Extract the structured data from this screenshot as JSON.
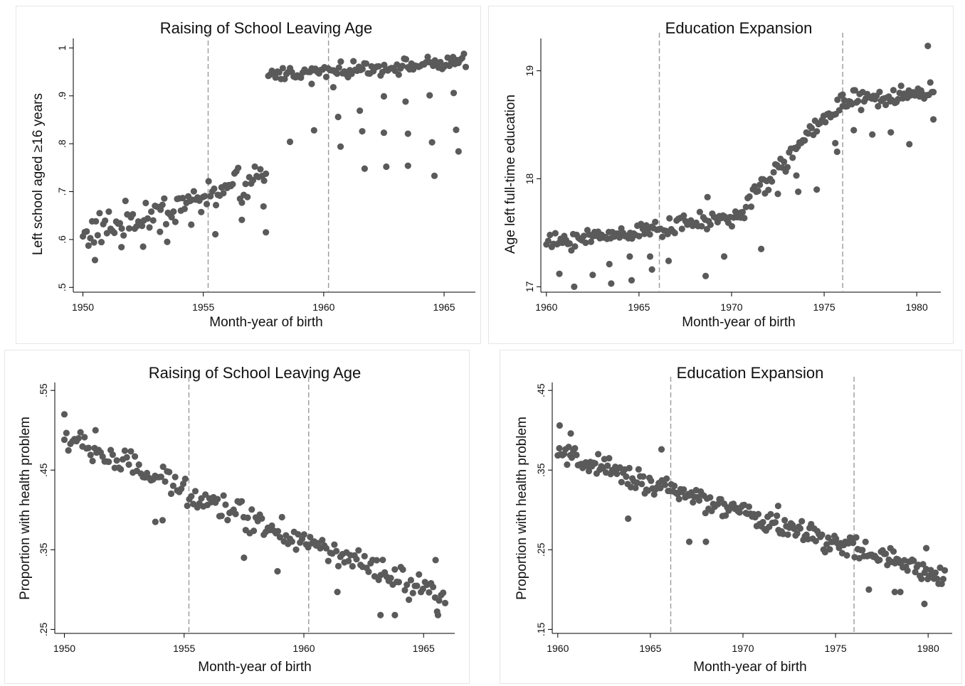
{
  "chart_data": [
    {
      "id": "tl",
      "type": "scatter",
      "title": "Raising of School Leaving Age",
      "xlabel": "Month-year of birth",
      "ylabel": "Left school aged ≥16 years",
      "xlim": [
        1949.6,
        1966.3
      ],
      "ylim": [
        0.49,
        1.02
      ],
      "xticks": [
        1950,
        1955,
        1960,
        1965
      ],
      "xtick_labels": [
        "1950",
        "1955",
        "1960",
        "1965"
      ],
      "yticks": [
        0.5,
        0.6,
        0.7,
        0.8,
        0.9,
        1.0
      ],
      "ytick_labels": [
        ".5",
        ".6",
        ".7",
        ".8",
        ".9",
        "1"
      ],
      "reference_lines": [
        1955.2,
        1960.2
      ],
      "grid": false,
      "trend": [
        {
          "x0": 1950.0,
          "x1": 1957.6,
          "y0": 0.61,
          "y1": 0.725,
          "spread": 0.045,
          "n": 100,
          "outliers": [
            [
              1950.5,
              0.557
            ],
            [
              1951.6,
              0.584
            ],
            [
              1952.5,
              0.585
            ],
            [
              1953.5,
              0.595
            ],
            [
              1955.5,
              0.611
            ],
            [
              1956.6,
              0.641
            ],
            [
              1957.6,
              0.615
            ],
            [
              1957.5,
              0.669
            ],
            [
              1954.5,
              0.631
            ],
            [
              1953.2,
              0.616
            ]
          ]
        },
        {
          "x0": 1957.7,
          "x1": 1965.9,
          "y0": 0.945,
          "y1": 0.97,
          "spread": 0.018,
          "n": 110,
          "outliers": [
            [
              1958.6,
              0.804
            ],
            [
              1959.6,
              0.828
            ],
            [
              1960.4,
              0.918
            ],
            [
              1960.6,
              0.856
            ],
            [
              1960.7,
              0.794
            ],
            [
              1961.6,
              0.826
            ],
            [
              1961.5,
              0.869
            ],
            [
              1961.7,
              0.748
            ],
            [
              1962.5,
              0.823
            ],
            [
              1962.6,
              0.752
            ],
            [
              1962.5,
              0.899
            ],
            [
              1963.5,
              0.821
            ],
            [
              1963.5,
              0.754
            ],
            [
              1963.4,
              0.888
            ],
            [
              1964.5,
              0.803
            ],
            [
              1964.6,
              0.733
            ],
            [
              1964.4,
              0.901
            ],
            [
              1965.5,
              0.829
            ],
            [
              1965.6,
              0.784
            ],
            [
              1965.4,
              0.906
            ],
            [
              1959.5,
              0.925
            ]
          ]
        }
      ]
    },
    {
      "id": "tr",
      "type": "scatter",
      "title": "Education Expansion",
      "xlabel": "Month-year of birth",
      "ylabel": "Age left full-time education",
      "xlim": [
        1959.7,
        1981.3
      ],
      "ylim": [
        16.95,
        19.3
      ],
      "xticks": [
        1960,
        1965,
        1970,
        1975,
        1980
      ],
      "xtick_labels": [
        "1960",
        "1965",
        "1970",
        "1975",
        "1980"
      ],
      "yticks": [
        17,
        18,
        19
      ],
      "ytick_labels": [
        "17",
        "18",
        "19"
      ],
      "reference_lines": [
        1966.1,
        1976.0
      ],
      "grid": false,
      "trend": [
        {
          "x0": 1960.0,
          "x1": 1970.5,
          "y0": 17.4,
          "y1": 17.65,
          "spread": 0.1,
          "n": 110,
          "outliers": [
            [
              1960.7,
              17.12
            ],
            [
              1961.5,
              17.0
            ],
            [
              1962.5,
              17.11
            ],
            [
              1963.4,
              17.21
            ],
            [
              1963.5,
              17.03
            ],
            [
              1964.5,
              17.28
            ],
            [
              1964.6,
              17.06
            ],
            [
              1965.6,
              17.28
            ],
            [
              1965.7,
              17.16
            ],
            [
              1966.6,
              17.24
            ],
            [
              1968.6,
              17.1
            ],
            [
              1969.6,
              17.28
            ],
            [
              1971.6,
              17.35
            ],
            [
              1968.7,
              17.83
            ]
          ]
        },
        {
          "x0": 1970.5,
          "x1": 1976.0,
          "y0": 17.7,
          "y1": 18.75,
          "spread": 0.12,
          "n": 60,
          "outliers": [
            [
              1973.6,
              17.88
            ],
            [
              1974.6,
              17.9
            ],
            [
              1972.5,
              17.86
            ],
            [
              1975.7,
              18.25
            ],
            [
              1975.6,
              18.33
            ],
            [
              1973.5,
              18.03
            ]
          ]
        },
        {
          "x0": 1976.0,
          "x1": 1980.9,
          "y0": 18.7,
          "y1": 18.8,
          "spread": 0.12,
          "n": 60,
          "outliers": [
            [
              1976.6,
              18.45
            ],
            [
              1977.6,
              18.41
            ],
            [
              1978.6,
              18.43
            ],
            [
              1979.6,
              18.32
            ],
            [
              1980.6,
              19.23
            ],
            [
              1980.9,
              18.55
            ]
          ]
        }
      ]
    },
    {
      "id": "bl",
      "type": "scatter",
      "title": "Raising of School Leaving Age",
      "xlabel": "Month-year of birth",
      "ylabel": "Proportion with health problem",
      "xlim": [
        1949.6,
        1966.3
      ],
      "ylim": [
        0.245,
        0.56
      ],
      "xticks": [
        1950,
        1955,
        1960,
        1965
      ],
      "xtick_labels": [
        "1950",
        "1955",
        "1960",
        "1965"
      ],
      "yticks": [
        0.25,
        0.35,
        0.45,
        0.55
      ],
      "ytick_labels": [
        ".25",
        ".35",
        ".45",
        ".55"
      ],
      "reference_lines": [
        1955.2,
        1960.2
      ],
      "grid": false,
      "trend": [
        {
          "x0": 1950.0,
          "x1": 1965.9,
          "y0": 0.49,
          "y1": 0.285,
          "spread": 0.022,
          "n": 190,
          "outliers": [
            [
              1950.0,
              0.52
            ],
            [
              1951.3,
              0.5
            ],
            [
              1957.5,
              0.34
            ],
            [
              1958.9,
              0.323
            ],
            [
              1961.4,
              0.297
            ],
            [
              1963.2,
              0.268
            ],
            [
              1963.8,
              0.268
            ],
            [
              1965.6,
              0.268
            ],
            [
              1965.5,
              0.337
            ],
            [
              1953.8,
              0.385
            ],
            [
              1954.1,
              0.387
            ]
          ]
        }
      ]
    },
    {
      "id": "br",
      "type": "scatter",
      "title": "Education Expansion",
      "xlabel": "Month-year of birth",
      "ylabel": "Proportion with health problem",
      "xlim": [
        1959.7,
        1981.3
      ],
      "ylim": [
        0.145,
        0.46
      ],
      "xticks": [
        1960,
        1965,
        1970,
        1975,
        1980
      ],
      "xtick_labels": [
        "1960",
        "1965",
        "1970",
        "1975",
        "1980"
      ],
      "yticks": [
        0.15,
        0.25,
        0.35,
        0.45
      ],
      "ytick_labels": [
        ".15",
        ".25",
        ".35",
        ".45"
      ],
      "reference_lines": [
        1966.1,
        1976.0
      ],
      "grid": false,
      "trend": [
        {
          "x0": 1960.0,
          "x1": 1980.9,
          "y0": 0.37,
          "y1": 0.215,
          "spread": 0.017,
          "n": 250,
          "outliers": [
            [
              1960.1,
              0.406
            ],
            [
              1960.7,
              0.396
            ],
            [
              1963.8,
              0.289
            ],
            [
              1967.1,
              0.26
            ],
            [
              1968.0,
              0.26
            ],
            [
              1965.6,
              0.376
            ],
            [
              1971.9,
              0.305
            ],
            [
              1978.2,
              0.197
            ],
            [
              1978.5,
              0.197
            ],
            [
              1979.8,
              0.182
            ],
            [
              1976.8,
              0.2
            ],
            [
              1979.9,
              0.252
            ]
          ]
        }
      ]
    }
  ]
}
